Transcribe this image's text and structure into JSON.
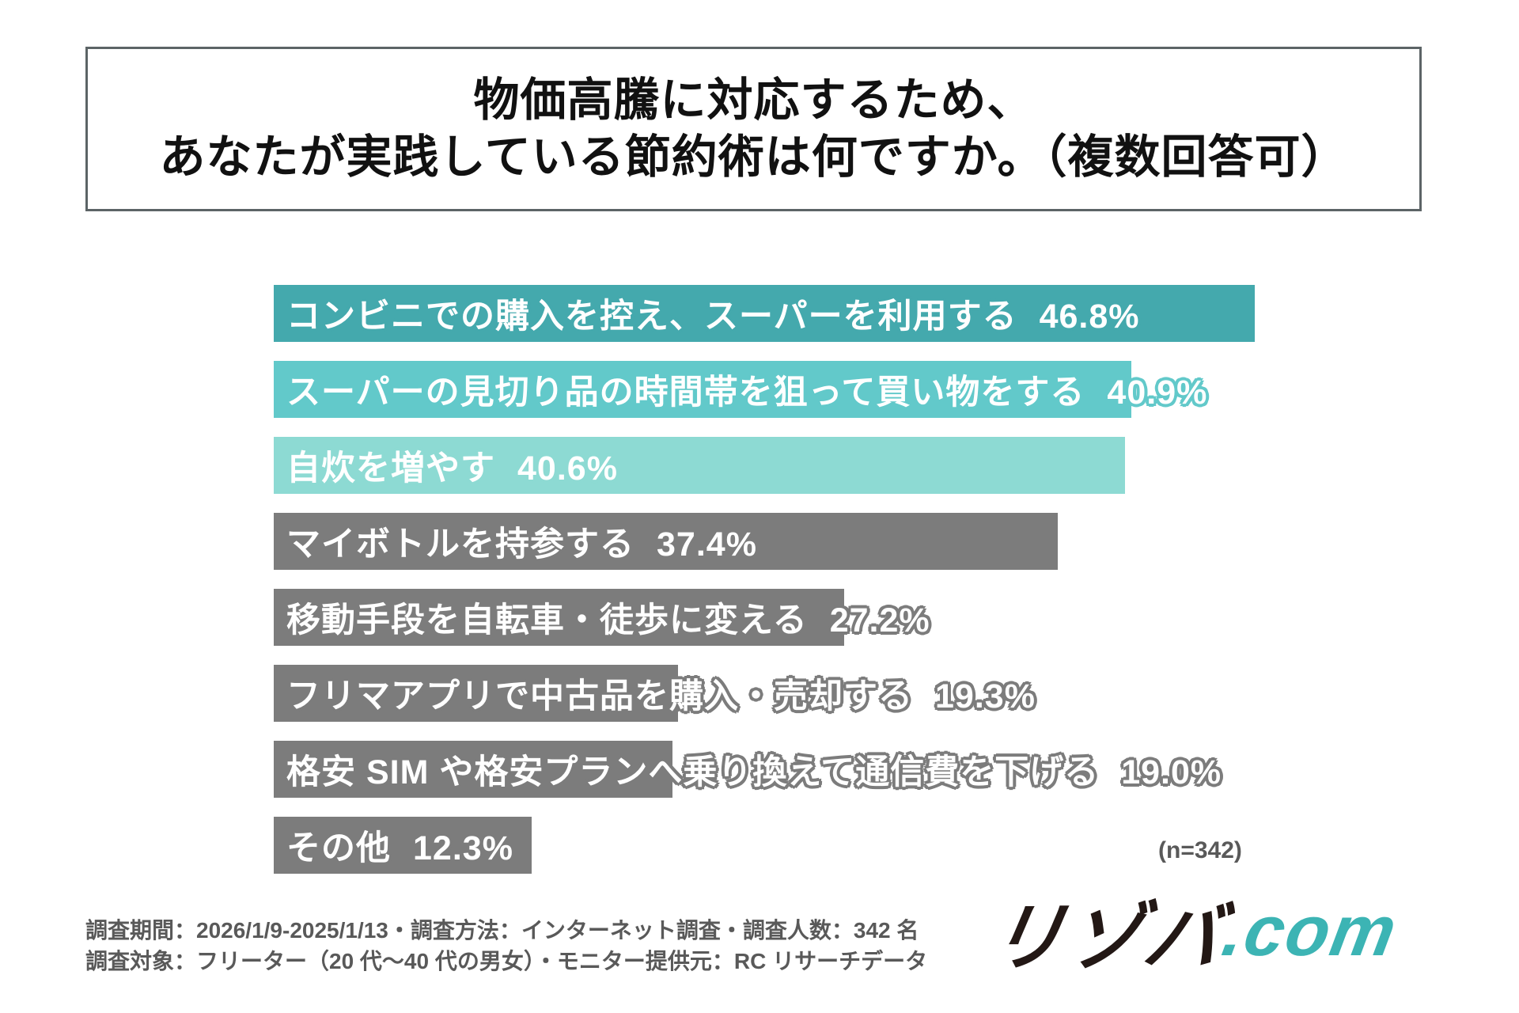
{
  "title": {
    "line1": "物価高騰に対応するため、",
    "line2": "あなたが実践している節約術は何ですか。（複数回答可）"
  },
  "chart_data": {
    "type": "bar",
    "orientation": "horizontal",
    "title": "物価高騰に対応するため、あなたが実践している節約術は何ですか。（複数回答可）",
    "categories": [
      "コンビニでの購入を控え、スーパーを利用する",
      "スーパーの見切り品の時間帯を狙って買い物をする",
      "自炊を増やす",
      "マイボトルを持参する",
      "移動手段を自転車・徒歩に変える",
      "フリマアプリで中古品を購入・売却する",
      "格安 SIM や格安プランへ乗り換えて通信費を下げる",
      "その他"
    ],
    "values": [
      46.8,
      40.9,
      40.6,
      37.4,
      27.2,
      19.3,
      19.0,
      12.3
    ],
    "value_labels": [
      "46.8%",
      "40.9%",
      "40.6%",
      "37.4%",
      "27.2%",
      "19.3%",
      "19.0%",
      "12.3%"
    ],
    "bar_colors": [
      "#44a9ad",
      "#62c9ca",
      "#8ddad3",
      "#7c7c7c",
      "#7c7c7c",
      "#7c7c7c",
      "#7c7c7c",
      "#7c7c7c"
    ],
    "text_color": "#ffffff",
    "xlim": [
      0,
      48
    ],
    "grid": false,
    "legend": false,
    "sample_size": 342,
    "sample_size_label": "(n=342)"
  },
  "footer": {
    "line1": "調査期間：2026/1/9-2025/1/13・調査方法：インターネット調査・調査人数：342 名",
    "line2": "調査対象：フリーター（20 代〜40 代の男女）・モニター提供元：RC リサーチデータ"
  },
  "logo": {
    "main": "リゾバ",
    "suffix": ".com",
    "main_color": "#231815",
    "suffix_color": "#3cb4b4"
  }
}
